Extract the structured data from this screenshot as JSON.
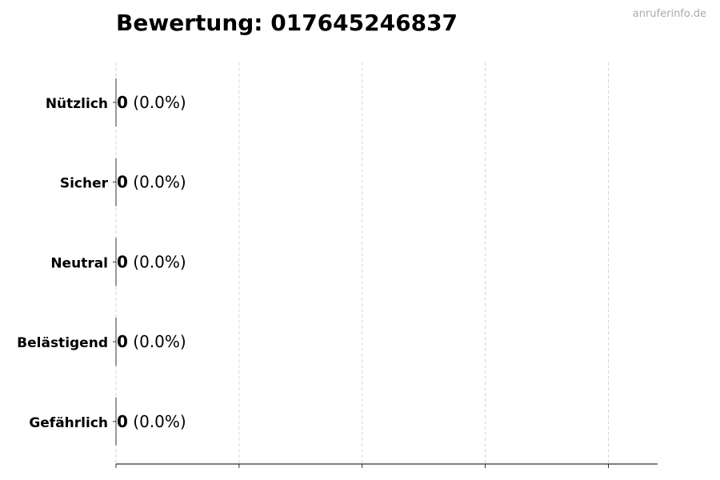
{
  "chart_data": {
    "type": "bar",
    "orientation": "horizontal",
    "title": "Bewertung: 017645246837",
    "watermark": "anruferinfo.de",
    "categories": [
      "Nützlich",
      "Sicher",
      "Neutral",
      "Belästigend",
      "Gefährlich"
    ],
    "values": [
      0,
      0,
      0,
      0,
      0
    ],
    "labels": [
      {
        "count": "0",
        "pct": "(0.0%)"
      },
      {
        "count": "0",
        "pct": "(0.0%)"
      },
      {
        "count": "0",
        "pct": "(0.0%)"
      },
      {
        "count": "0",
        "pct": "(0.0%)"
      },
      {
        "count": "0",
        "pct": "(0.0%)"
      }
    ],
    "xlim": [
      0,
      4.4
    ],
    "xticks": [
      0,
      1,
      2,
      3,
      4
    ],
    "xtick_labels_shown": false,
    "grid": "x, dashed",
    "bar_color": "#333333"
  }
}
